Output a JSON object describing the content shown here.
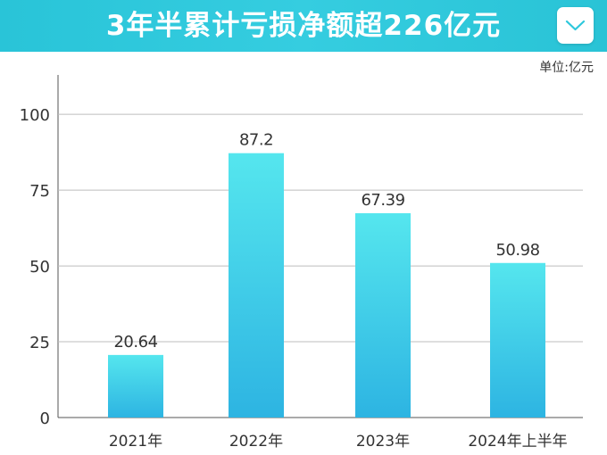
{
  "banner": {
    "title": "3年半累计亏损净额超226亿元",
    "color": "#2ec8dc"
  },
  "toolbar": {
    "collapse_icon": "chevron-down-icon"
  },
  "chart_data": {
    "type": "bar",
    "title": "",
    "unit_label": "单位:亿元",
    "categories": [
      "2021年",
      "2022年",
      "2023年",
      "2024年上半年"
    ],
    "values": [
      20.64,
      87.2,
      67.39,
      50.98
    ],
    "value_labels": [
      "20.64",
      "87.2",
      "67.39",
      "50.98"
    ],
    "yticks": [
      0,
      25,
      50,
      75,
      100
    ],
    "ylim": [
      0,
      113
    ],
    "grid": true,
    "bar_gradient": [
      "#55e6ee",
      "#2db4e2"
    ]
  }
}
